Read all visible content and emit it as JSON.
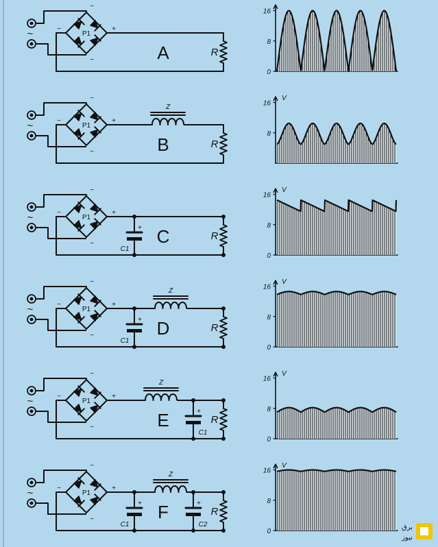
{
  "colors": {
    "background": "#b3d8ee",
    "ink": "#111111",
    "logo": "#f2c500"
  },
  "symbols": {
    "ac": "~",
    "plus": "+",
    "minus": "−"
  },
  "bridge_label": "P1",
  "choke_label": "Z",
  "resistor_label": "R",
  "panels": [
    {
      "letter": "A",
      "choke": false,
      "c_in": null,
      "c_out": null,
      "graph": {
        "ticks": [
          "16",
          "8",
          "0"
        ],
        "vlabel": "",
        "type": "full-wave rectified",
        "peak": 16,
        "trough": 0
      }
    },
    {
      "letter": "B",
      "choke": true,
      "c_in": null,
      "c_out": null,
      "graph": {
        "ticks": [
          "16",
          "8"
        ],
        "vlabel": "V",
        "type": "choke filtered",
        "peak": 10.5,
        "trough": 5
      }
    },
    {
      "letter": "C",
      "choke": false,
      "c_in": "C1",
      "c_out": null,
      "graph": {
        "ticks": [
          "16",
          "8",
          "0"
        ],
        "vlabel": "V",
        "type": "capacitor filtered",
        "peak": 14.5,
        "trough": 11.5
      }
    },
    {
      "letter": "D",
      "choke": true,
      "c_in": "C1",
      "c_out": null,
      "graph": {
        "ticks": [
          "16",
          "8",
          "0"
        ],
        "vlabel": "V",
        "type": "LC filtered",
        "peak": 14.6,
        "trough": 13.8
      }
    },
    {
      "letter": "E",
      "choke": true,
      "c_in": null,
      "c_out": "C1",
      "graph": {
        "ticks": [
          "16",
          "8",
          "0"
        ],
        "vlabel": "V",
        "type": "choke-input filtered",
        "peak": 8.2,
        "trough": 7
      }
    },
    {
      "letter": "F",
      "choke": true,
      "c_in": "C1",
      "c_out": "C2",
      "graph": {
        "ticks": [
          "16",
          "8",
          "0"
        ],
        "vlabel": "V",
        "type": "pi filtered",
        "peak": 16,
        "trough": 15.6
      }
    }
  ],
  "logo": {
    "line1": "برق",
    "line2": "نیوز"
  }
}
